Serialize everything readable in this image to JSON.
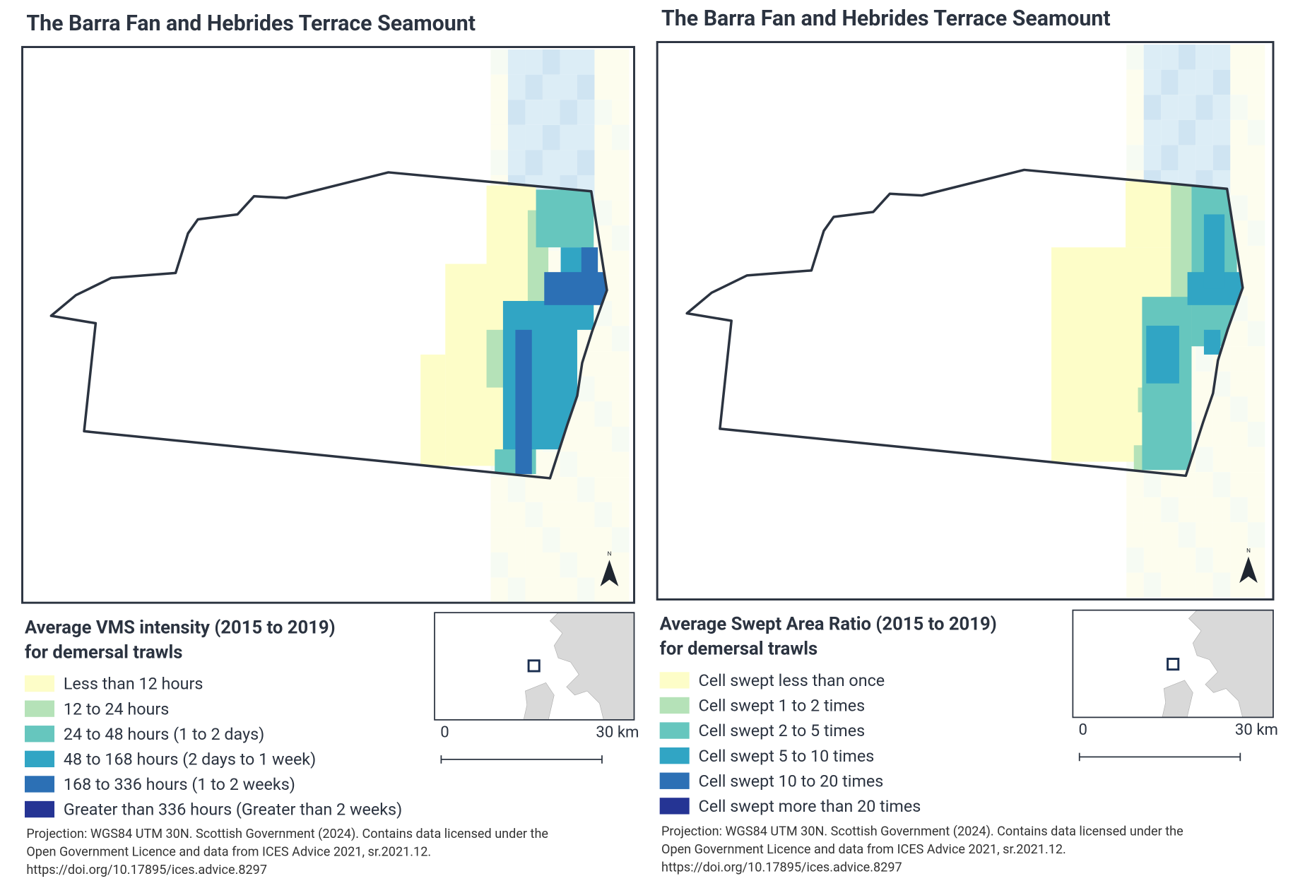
{
  "panels": [
    {
      "title": "The Barra Fan and Hebrides Terrace Seamount",
      "legend": {
        "title": [
          "Average VMS intensity (2015 to 2019)",
          "for demersal trawls"
        ],
        "items": [
          {
            "label": "Less than 12 hours",
            "color": "#fdfdc8"
          },
          {
            "label": "12 to 24 hours",
            "color": "#b5e2b8"
          },
          {
            "label": "24 to 48 hours (1 to 2 days)",
            "color": "#66c6be"
          },
          {
            "label": "48 to 168 hours (2 days to 1 week)",
            "color": "#31a5c4"
          },
          {
            "label": "168 to 336 hours (1 to 2 weeks)",
            "color": "#2c70b5"
          },
          {
            "label": "Greater than 336 hours (Greater than 2 weeks)",
            "color": "#253494"
          }
        ]
      },
      "scale": [
        "0",
        "30 km"
      ],
      "north": "N",
      "attribution": [
        "Projection: WGS84 UTM 30N. Scottish Government (2024). Contains data licensed under the",
        "Open Government Licence and data from ICES Advice 2021, sr.2021.12.",
        "https://doi.org/10.17895/ices.advice.8297"
      ]
    },
    {
      "title": "The Barra Fan and Hebrides Terrace Seamount",
      "legend": {
        "title": [
          "Average Swept Area Ratio (2015 to 2019)",
          "for demersal trawls"
        ],
        "items": [
          {
            "label": "Cell swept less than once",
            "color": "#fdfdc8"
          },
          {
            "label": "Cell swept 1 to 2 times",
            "color": "#b5e2b8"
          },
          {
            "label": "Cell swept 2 to 5 times",
            "color": "#66c6be"
          },
          {
            "label": "Cell swept 5 to 10 times",
            "color": "#31a5c4"
          },
          {
            "label": "Cell swept 10 to 20 times",
            "color": "#2c70b5"
          },
          {
            "label": "Cell swept more than 20 times",
            "color": "#253494"
          }
        ]
      },
      "scale": [
        "0",
        "30 km"
      ],
      "north": "N",
      "attribution": [
        "Projection: WGS84 UTM 30N. Scottish Government (2024). Contains data licensed under the",
        "Open Government Licence and data from ICES Advice 2021, sr.2021.12.",
        "https://doi.org/10.17895/ices.advice.8297"
      ]
    }
  ]
}
